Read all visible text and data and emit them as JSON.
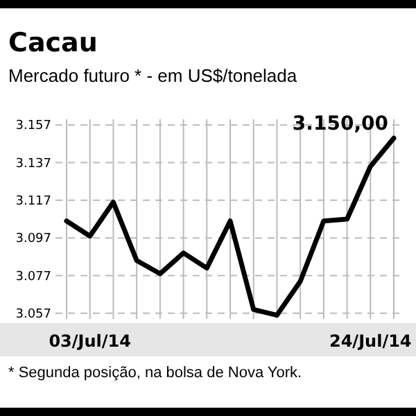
{
  "chart_data": {
    "type": "line",
    "title": "Cacau",
    "subtitle": "Mercado futuro * - em US$/tonelada",
    "categories": [
      null,
      "03/Jul/14",
      null,
      null,
      null,
      null,
      null,
      null,
      null,
      null,
      null,
      null,
      null,
      "24/Jul/14",
      null
    ],
    "series": [
      {
        "color": "#000000",
        "values": [
          3106,
          3098,
          3116,
          3085,
          3078,
          3089,
          3081,
          3106,
          3059,
          3056,
          3074,
          3106,
          3107,
          3135,
          3150
        ],
        "value_labels": [
          null,
          null,
          null,
          null,
          null,
          null,
          null,
          null,
          null,
          null,
          null,
          null,
          null,
          null,
          "3.150,00"
        ]
      }
    ],
    "ylim": [
      3054,
      3160
    ],
    "yticks": [
      {
        "value": 3057,
        "label": "3.057"
      },
      {
        "value": 3077,
        "label": "3.077"
      },
      {
        "value": 3097,
        "label": "3.097"
      },
      {
        "value": 3117,
        "label": "3.117"
      },
      {
        "value": 3137,
        "label": "3.137"
      },
      {
        "value": 3157,
        "label": "3.157"
      }
    ],
    "grid": true,
    "marker": "none",
    "line_style": "solid",
    "annotations": [
      "* Segunda posição, na bolsa de Nova York."
    ]
  }
}
